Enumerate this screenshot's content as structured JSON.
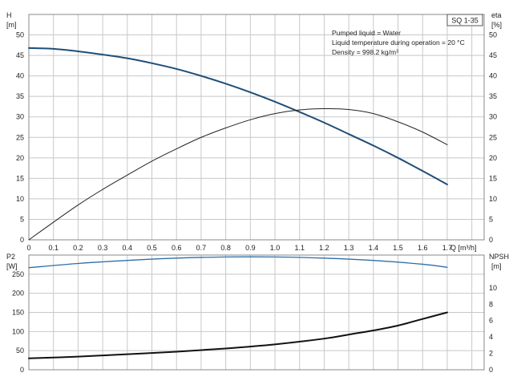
{
  "header": {
    "model_label": "SQ 1-35",
    "info_lines": [
      "Pumped liquid = Water",
      "Liquid temperature during operation = 20 °C",
      "Density = 998.2 kg/m³"
    ]
  },
  "colors": {
    "head_curve": "#1f4e79",
    "efficiency_curve": "#222222",
    "power_curve": "#2f6fa7",
    "npsh_curve": "#111111",
    "grid": "#c8c8c8"
  },
  "chart_data": [
    {
      "type": "line",
      "panel": "upper",
      "x_axis": {
        "label": "Q [m³/h]",
        "min": 0,
        "max": 1.85,
        "ticks": [
          "0",
          "0.1",
          "0.2",
          "0.3",
          "0.4",
          "0.5",
          "0.6",
          "0.7",
          "0.8",
          "0.9",
          "1.0",
          "1.1",
          "1.2",
          "1.3",
          "1.4",
          "1.5",
          "1.6",
          "1.7"
        ]
      },
      "y_axis_left": {
        "label_line1": "H",
        "label_line2": "[m]",
        "min": 0,
        "max": 55,
        "ticks": [
          "0",
          "5",
          "10",
          "15",
          "20",
          "25",
          "30",
          "35",
          "40",
          "45",
          "50"
        ]
      },
      "y_axis_right": {
        "label_line1": "eta",
        "label_line2": "[%]",
        "min": 0,
        "max": 55,
        "ticks": [
          "0",
          "5",
          "10",
          "15",
          "20",
          "25",
          "30",
          "35",
          "40",
          "45",
          "50"
        ]
      },
      "grid": true,
      "series": [
        {
          "key": "head",
          "axis": "left",
          "x": [
            0,
            0.1,
            0.2,
            0.3,
            0.4,
            0.5,
            0.6,
            0.7,
            0.8,
            0.9,
            1.0,
            1.1,
            1.2,
            1.3,
            1.4,
            1.5,
            1.6,
            1.7
          ],
          "values": [
            46.8,
            46.6,
            46.0,
            45.2,
            44.3,
            43.1,
            41.7,
            40.0,
            38.1,
            36.0,
            33.7,
            31.2,
            28.6,
            25.8,
            23.0,
            20.0,
            16.8,
            13.5
          ]
        },
        {
          "key": "efficiency",
          "axis": "right",
          "x": [
            0,
            0.1,
            0.2,
            0.3,
            0.4,
            0.5,
            0.6,
            0.7,
            0.8,
            0.9,
            1.0,
            1.1,
            1.2,
            1.3,
            1.4,
            1.5,
            1.6,
            1.7
          ],
          "values": [
            0,
            4.3,
            8.5,
            12.3,
            15.8,
            19.2,
            22.2,
            25.0,
            27.3,
            29.3,
            30.8,
            31.7,
            32.0,
            31.8,
            30.8,
            28.8,
            26.3,
            23.2
          ]
        }
      ]
    },
    {
      "type": "line",
      "panel": "lower",
      "x_axis": {
        "min": 0,
        "max": 1.85
      },
      "y_axis_left": {
        "label_line1": "P2",
        "label_line2": "[W]",
        "min": 0,
        "max": 300,
        "ticks": [
          "0",
          "50",
          "100",
          "150",
          "200",
          "250"
        ]
      },
      "y_axis_right": {
        "label_line1": "NPSH",
        "label_line2": "[m]",
        "min": 0,
        "max": 14,
        "ticks": [
          "0",
          "2",
          "4",
          "6",
          "8",
          "10"
        ]
      },
      "grid": true,
      "series": [
        {
          "key": "power",
          "axis": "left",
          "x": [
            0,
            0.2,
            0.4,
            0.6,
            0.8,
            1.0,
            1.2,
            1.4,
            1.6,
            1.7
          ],
          "values": [
            267,
            278,
            286,
            292,
            295,
            295,
            292,
            286,
            276,
            268
          ]
        },
        {
          "key": "npsh",
          "axis": "right",
          "x": [
            0,
            0.2,
            0.4,
            0.6,
            0.8,
            1.0,
            1.2,
            1.3,
            1.4,
            1.5,
            1.6,
            1.7
          ],
          "values": [
            1.4,
            1.6,
            1.9,
            2.2,
            2.6,
            3.1,
            3.8,
            4.3,
            4.8,
            5.4,
            6.2,
            7.0
          ]
        }
      ]
    }
  ]
}
